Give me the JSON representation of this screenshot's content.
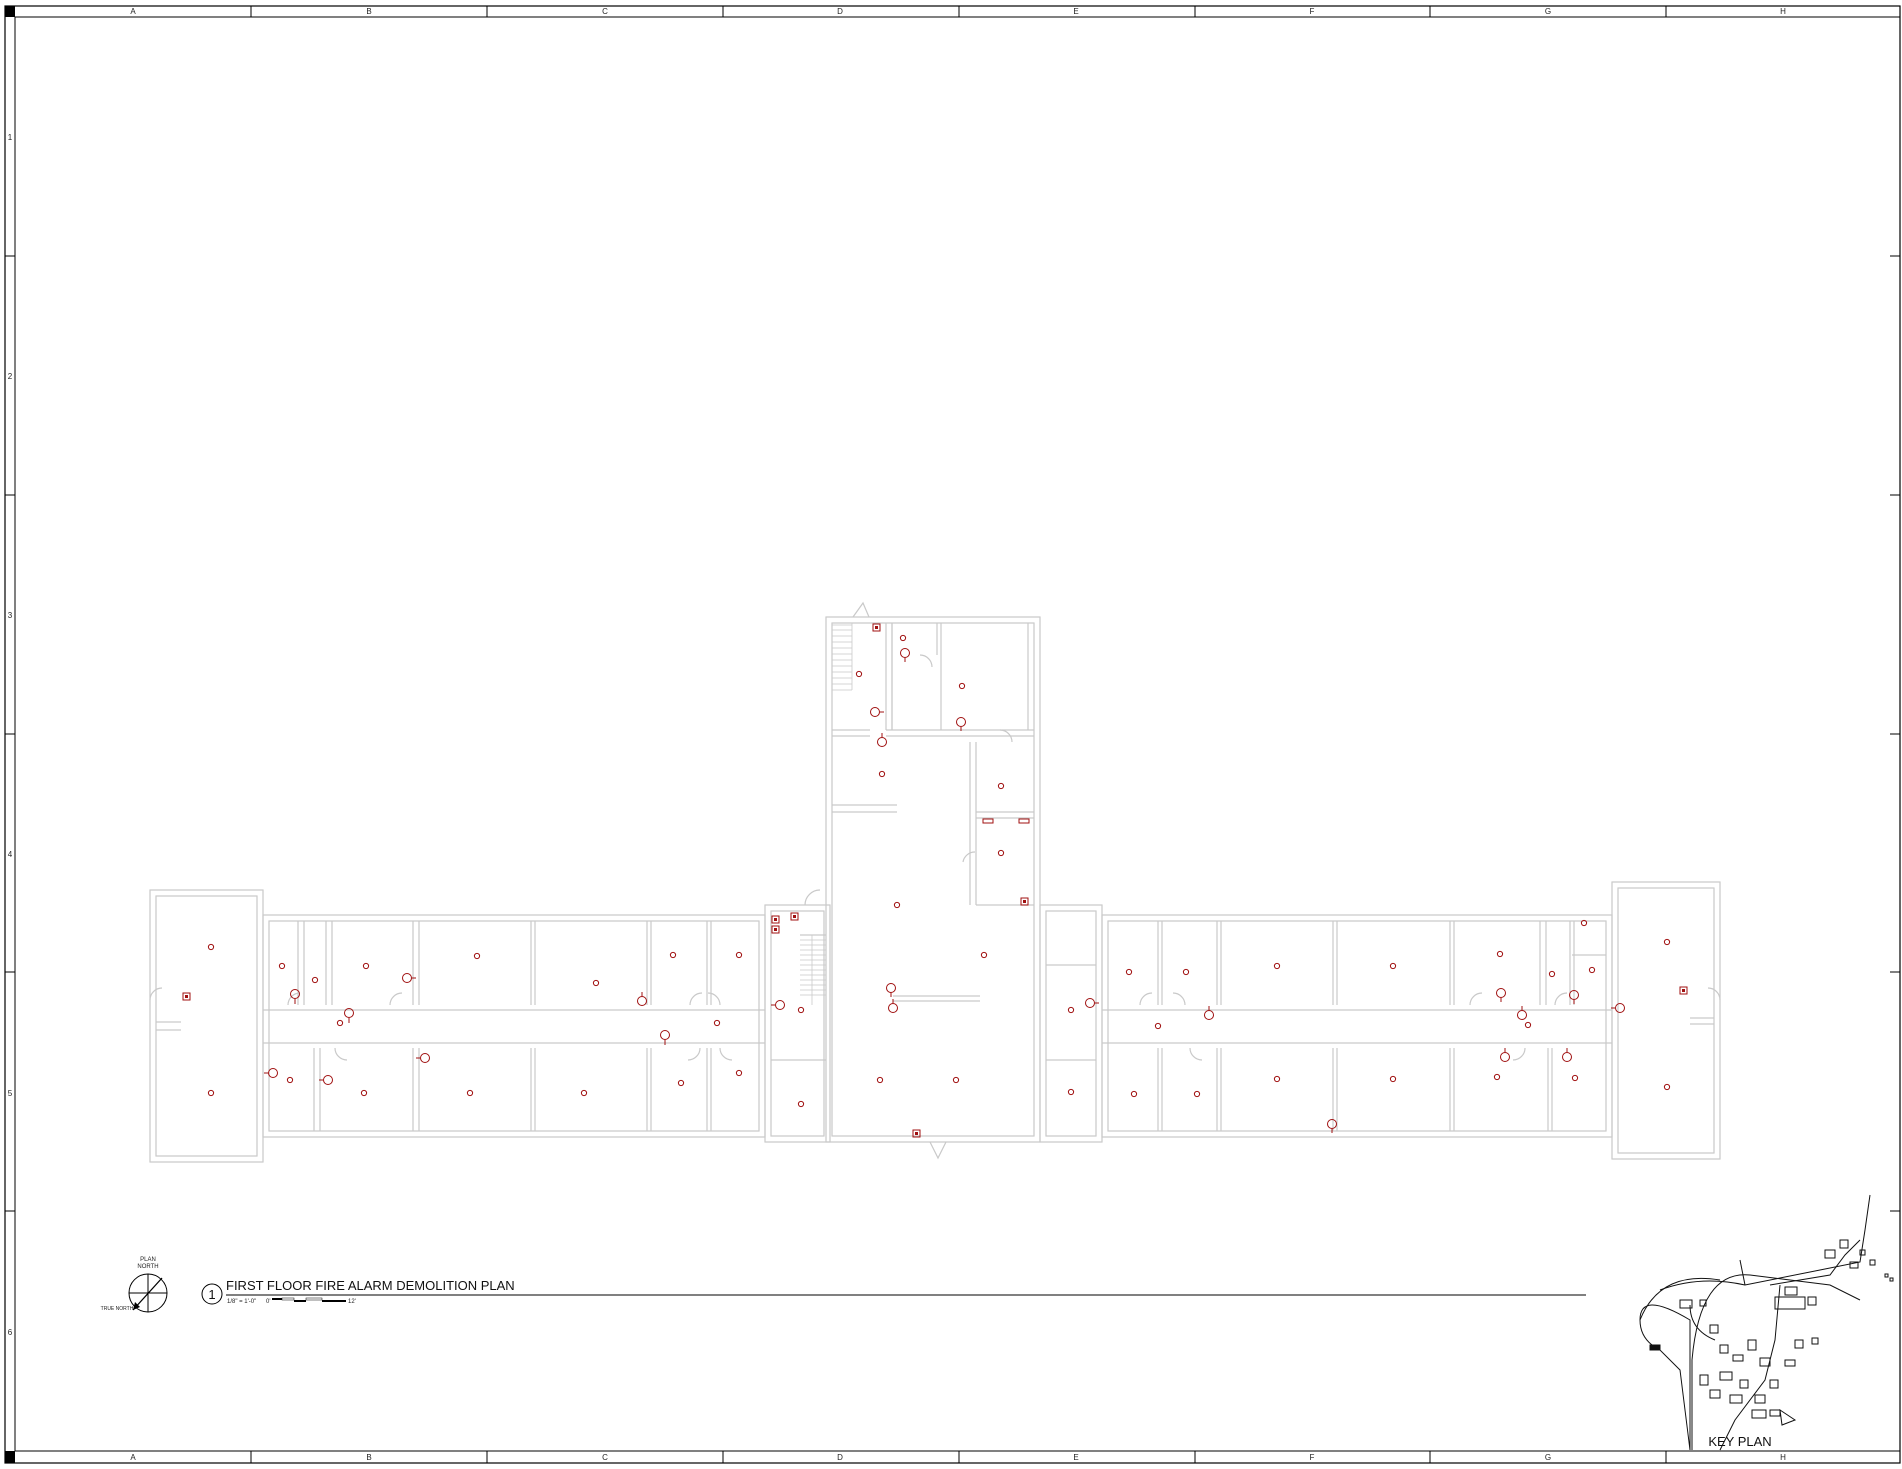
{
  "sheet": {
    "column_labels": [
      "A",
      "B",
      "C",
      "D",
      "E",
      "F",
      "G",
      "H"
    ],
    "row_labels": [
      "1",
      "2",
      "3",
      "4",
      "5",
      "6"
    ]
  },
  "drawing": {
    "number": "1",
    "title": "FIRST FLOOR FIRE ALARM DEMOLITION PLAN",
    "scale": "1/8\" = 1'-0\"",
    "scale_start": "0'",
    "scale_end": "12'"
  },
  "north_arrow": {
    "label_top": "PLAN\nNORTH",
    "label_true": "TRUE NORTH"
  },
  "key_plan": {
    "label": "KEY PLAN"
  },
  "colors": {
    "walls": "#c9c9c9",
    "devices": "#a01010",
    "border": "#000000"
  }
}
